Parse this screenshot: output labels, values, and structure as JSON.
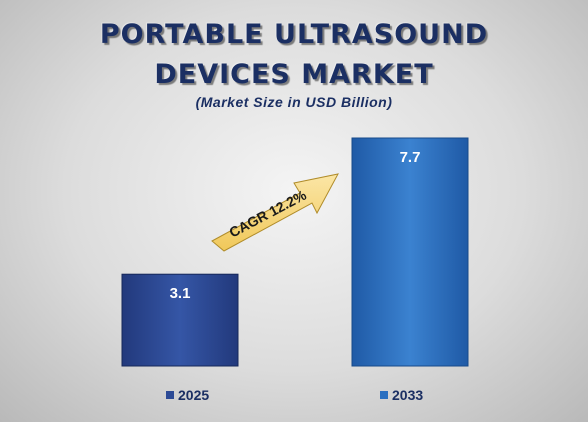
{
  "title_line1": "PORTABLE ULTRASOUND",
  "title_line2": "DEVICES MARKET",
  "subtitle": "(Market Size in USD Billion)",
  "annotation": "CAGR 12.2%",
  "colors": {
    "bar_2025": "#2c4a96",
    "bar_2033": "#2a6fc0",
    "title": "#1b2f63",
    "arrow": "#f7d87a"
  },
  "chart_data": {
    "type": "bar",
    "categories": [
      "2025",
      "2033"
    ],
    "values": [
      3.1,
      7.7
    ],
    "title": "PORTABLE ULTRASOUND DEVICES MARKET",
    "subtitle": "(Market Size in USD Billion)",
    "data_labels": [
      "3.1",
      "7.7"
    ],
    "legend": [
      "2025",
      "2033"
    ],
    "legend_position": "bottom",
    "grid": false,
    "annotations": [
      "CAGR 12.2%"
    ]
  }
}
